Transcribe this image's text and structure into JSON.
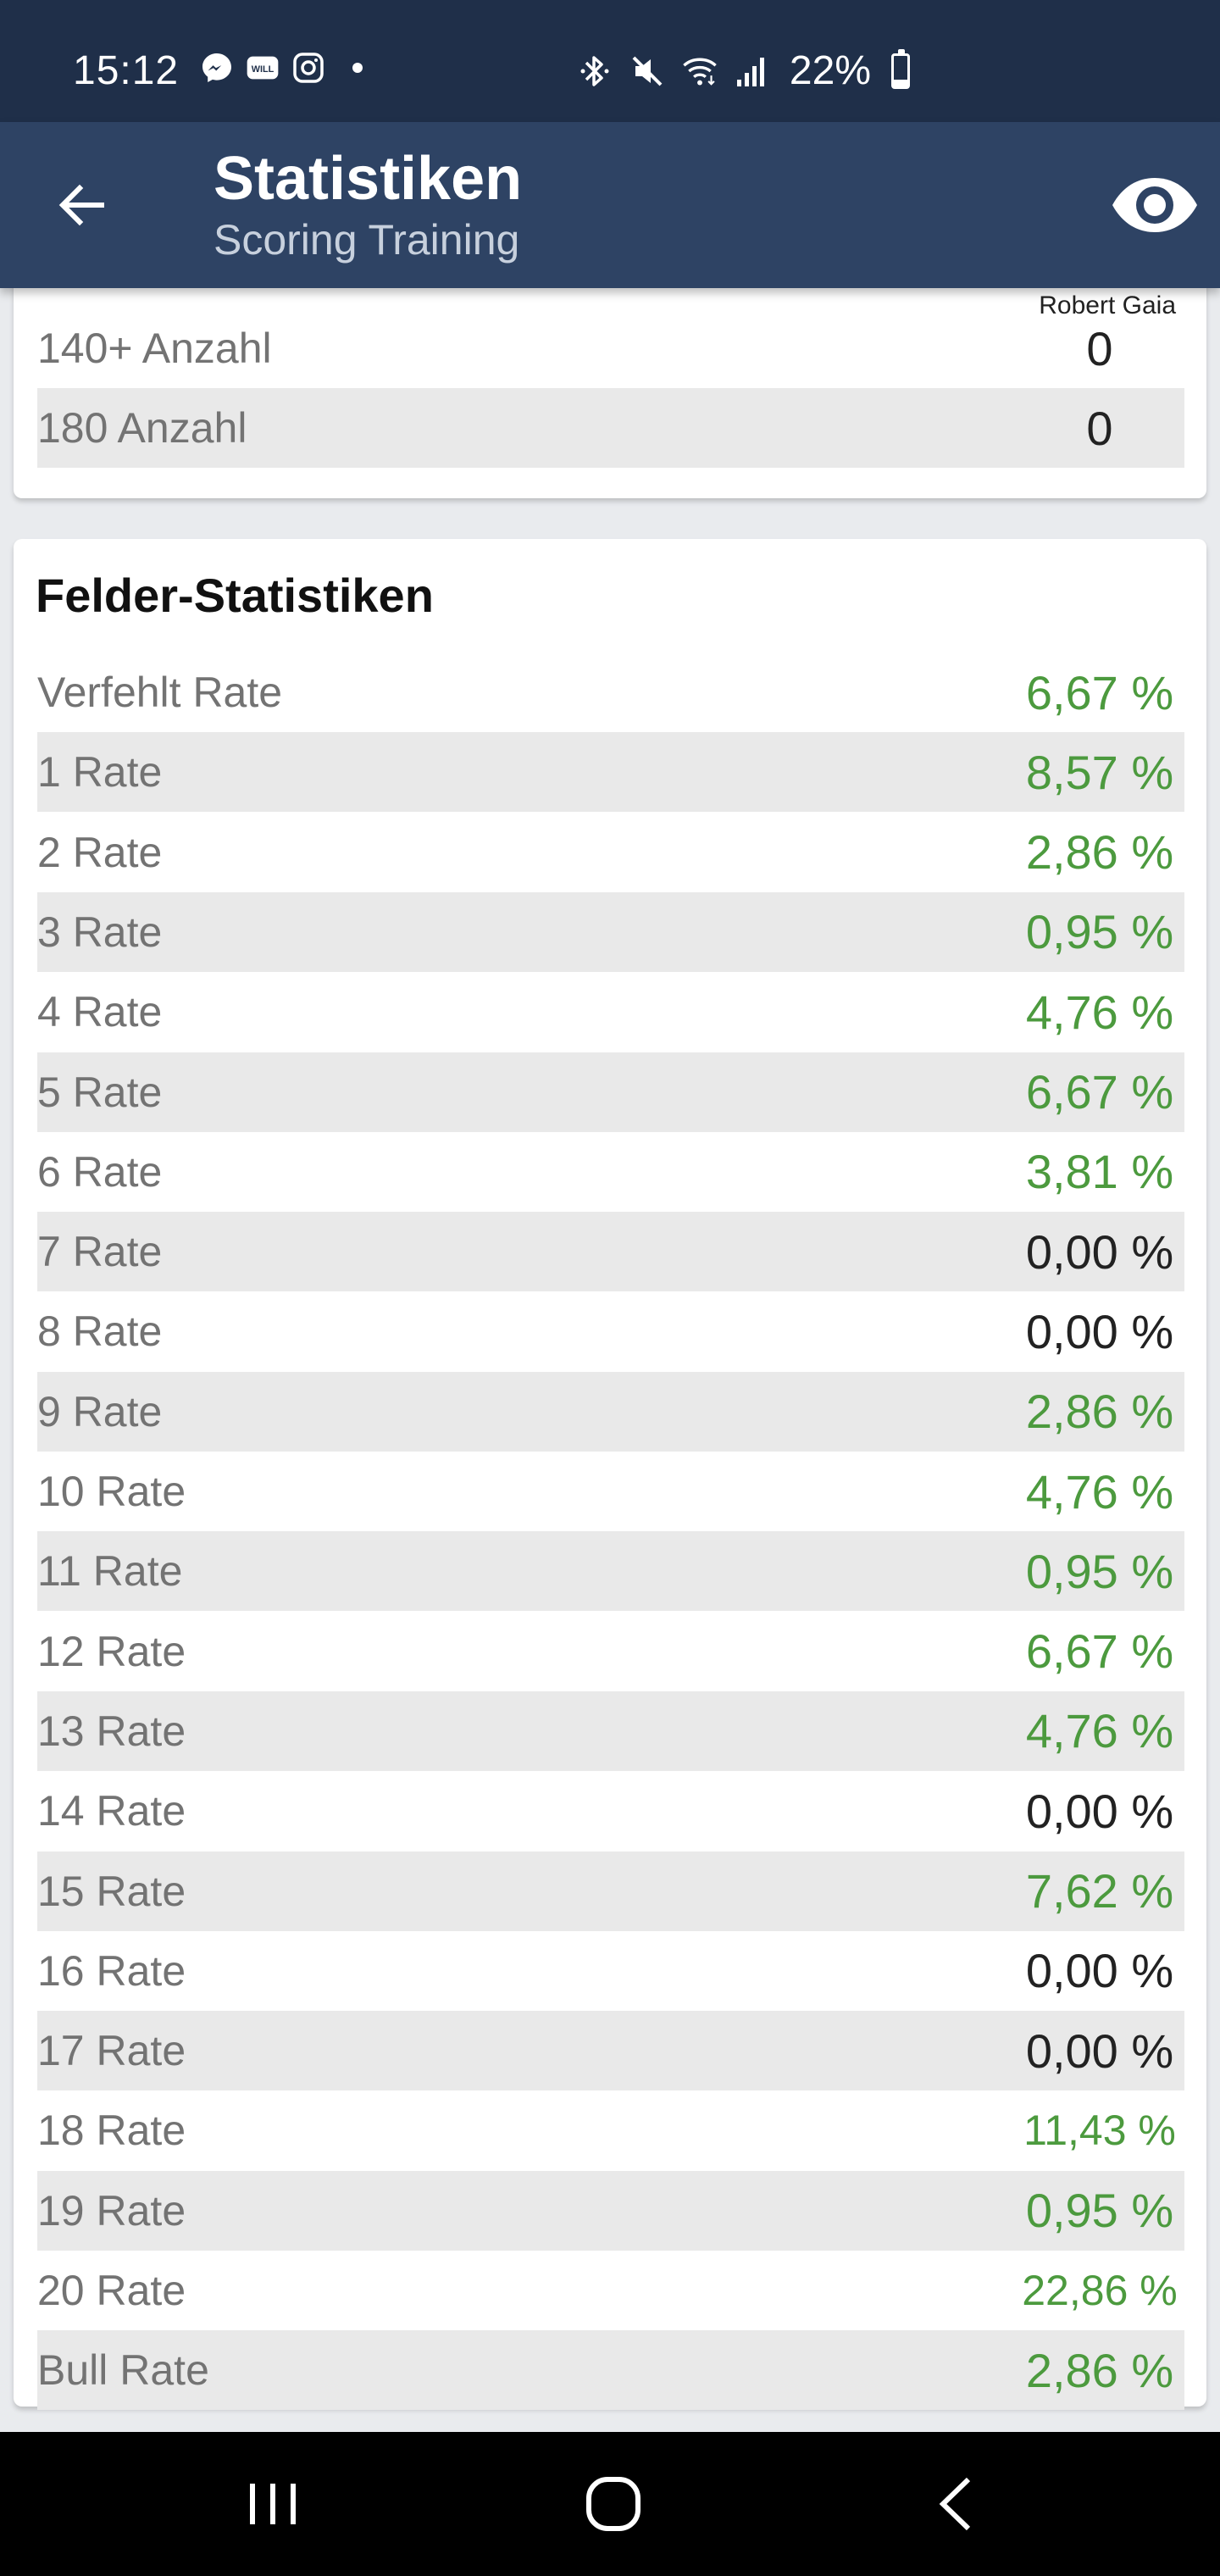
{
  "status_bar": {
    "time": "15:12",
    "battery_text": "22%",
    "battery_level": 0.22,
    "left_icons": [
      "messenger-icon",
      "will-icon",
      "instagram-icon",
      "notification-dot"
    ],
    "right_icons": [
      "bluetooth-icon",
      "mute-icon",
      "wifi-icon",
      "signal-icon",
      "battery-icon"
    ]
  },
  "app_bar": {
    "title": "Statistiken",
    "subtitle": "Scoring Training",
    "back_icon": "arrow-left-icon",
    "eye_icon": "eye-icon"
  },
  "player": {
    "name": "Robert Gaia"
  },
  "count_stats": [
    {
      "label": "140+ Anzahl",
      "value": "0"
    },
    {
      "label": "180 Anzahl",
      "value": "0"
    }
  ],
  "fields_section": {
    "title": "Felder-Statistiken",
    "rows": [
      {
        "label": "Verfehlt Rate",
        "value": "6,67 %",
        "highlight": true
      },
      {
        "label": "1 Rate",
        "value": "8,57 %",
        "highlight": true
      },
      {
        "label": "2 Rate",
        "value": "2,86 %",
        "highlight": true
      },
      {
        "label": "3 Rate",
        "value": "0,95 %",
        "highlight": true
      },
      {
        "label": "4 Rate",
        "value": "4,76 %",
        "highlight": true
      },
      {
        "label": "5 Rate",
        "value": "6,67 %",
        "highlight": true
      },
      {
        "label": "6 Rate",
        "value": "3,81 %",
        "highlight": true
      },
      {
        "label": "7 Rate",
        "value": "0,00 %",
        "highlight": false
      },
      {
        "label": "8 Rate",
        "value": "0,00 %",
        "highlight": false
      },
      {
        "label": "9 Rate",
        "value": "2,86 %",
        "highlight": true
      },
      {
        "label": "10 Rate",
        "value": "4,76 %",
        "highlight": true
      },
      {
        "label": "11 Rate",
        "value": "0,95 %",
        "highlight": true
      },
      {
        "label": "12 Rate",
        "value": "6,67 %",
        "highlight": true
      },
      {
        "label": "13 Rate",
        "value": "4,76 %",
        "highlight": true
      },
      {
        "label": "14 Rate",
        "value": "0,00 %",
        "highlight": false
      },
      {
        "label": "15 Rate",
        "value": "7,62 %",
        "highlight": true
      },
      {
        "label": "16 Rate",
        "value": "0,00 %",
        "highlight": false
      },
      {
        "label": "17 Rate",
        "value": "0,00 %",
        "highlight": false
      },
      {
        "label": "18 Rate",
        "value": "11,43 %",
        "highlight": true
      },
      {
        "label": "19 Rate",
        "value": "0,95 %",
        "highlight": true
      },
      {
        "label": "20 Rate",
        "value": "22,86 %",
        "highlight": true
      },
      {
        "label": "Bull Rate",
        "value": "2,86 %",
        "highlight": true
      }
    ]
  },
  "colors": {
    "status_bar": "#1f2f49",
    "app_bar": "#2e4364",
    "highlight_value": "#4c9a3e",
    "row_shade": "#e9e9e9"
  },
  "nav_bar": {
    "icons": [
      "recent-apps-icon",
      "home-icon",
      "back-icon"
    ]
  }
}
